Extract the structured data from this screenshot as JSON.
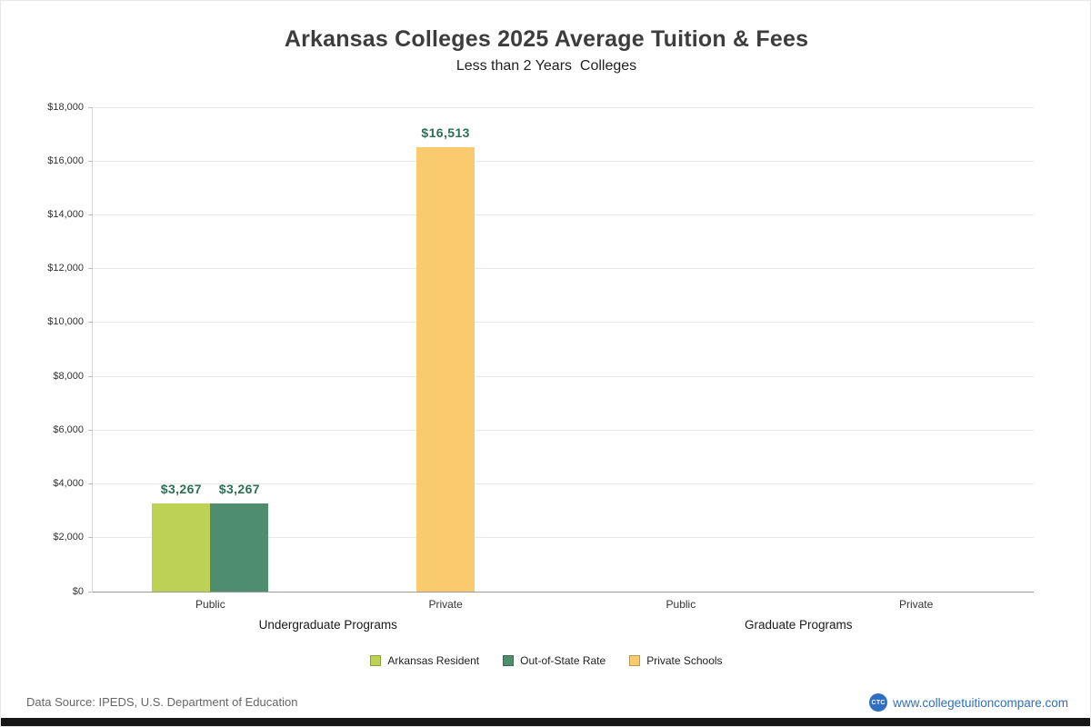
{
  "chart_data": {
    "type": "bar",
    "title": "Arkansas Colleges 2025 Average Tuition & Fees",
    "subtitle": "Less than 2 Years  Colleges",
    "ylim": [
      0,
      18000
    ],
    "ytick_step": 2000,
    "grid": true,
    "legend_position": "bottom",
    "groups": [
      {
        "label": "Public",
        "section": "Undergraduate Programs"
      },
      {
        "label": "Private",
        "section": "Undergraduate Programs"
      },
      {
        "label": "Public",
        "section": "Graduate Programs"
      },
      {
        "label": "Private",
        "section": "Graduate Programs"
      }
    ],
    "sections": [
      {
        "label": "Undergraduate Programs"
      },
      {
        "label": "Graduate Programs"
      }
    ],
    "series": [
      {
        "name": "Arkansas Resident",
        "color": "#bdd155"
      },
      {
        "name": "Out-of-State Rate",
        "color": "#4e8e6e"
      },
      {
        "name": "Private Schools",
        "color": "#f9cb6e"
      }
    ],
    "bars": [
      {
        "group_index": 0,
        "series": "Arkansas Resident",
        "value": 3267,
        "label": "$3,267"
      },
      {
        "group_index": 0,
        "series": "Out-of-State Rate",
        "value": 3267,
        "label": "$3,267"
      },
      {
        "group_index": 1,
        "series": "Private Schools",
        "value": 16513,
        "label": "$16,513"
      }
    ]
  },
  "footer": {
    "data_source": "Data Source: IPEDS, U.S. Department of Education",
    "logo_text": "CTC",
    "website": "www.collegetuitioncompare.com"
  }
}
